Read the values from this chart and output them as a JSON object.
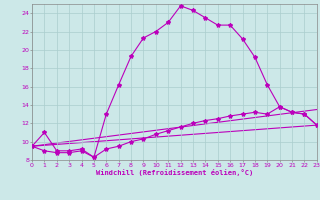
{
  "xlabel": "Windchill (Refroidissement éolien,°C)",
  "xlim": [
    0,
    23
  ],
  "ylim": [
    8,
    25
  ],
  "yticks": [
    8,
    10,
    12,
    14,
    16,
    18,
    20,
    22,
    24
  ],
  "xticks": [
    0,
    1,
    2,
    3,
    4,
    5,
    6,
    7,
    8,
    9,
    10,
    11,
    12,
    13,
    14,
    15,
    16,
    17,
    18,
    19,
    20,
    21,
    22,
    23
  ],
  "bg_color": "#cce8e8",
  "grid_color": "#aacece",
  "line_color": "#bb00bb",
  "line1_x": [
    0,
    1,
    2,
    3,
    4,
    5,
    6,
    7,
    8,
    9,
    10,
    11,
    12,
    13,
    14,
    15,
    16,
    17,
    18,
    19,
    20,
    21,
    22,
    23
  ],
  "line1_y": [
    9.5,
    11.0,
    9.0,
    9.0,
    9.2,
    8.3,
    13.0,
    16.2,
    19.3,
    21.3,
    22.0,
    23.0,
    24.8,
    24.3,
    23.5,
    22.7,
    22.7,
    21.2,
    19.2,
    16.2,
    13.8,
    13.2,
    13.0,
    11.8
  ],
  "line2_x": [
    0,
    1,
    2,
    3,
    4,
    5,
    6,
    7,
    8,
    9,
    10,
    11,
    12,
    13,
    14,
    15,
    16,
    17,
    18,
    19,
    20,
    21,
    22,
    23
  ],
  "line2_y": [
    9.5,
    9.0,
    8.8,
    8.8,
    9.0,
    8.3,
    9.2,
    9.5,
    10.0,
    10.3,
    10.8,
    11.2,
    11.6,
    12.0,
    12.3,
    12.5,
    12.8,
    13.0,
    13.2,
    13.0,
    13.8,
    13.2,
    13.0,
    11.8
  ],
  "line3_x": [
    0,
    23
  ],
  "line3_y": [
    9.5,
    11.8
  ],
  "line4_x": [
    0,
    23
  ],
  "line4_y": [
    9.5,
    13.5
  ]
}
